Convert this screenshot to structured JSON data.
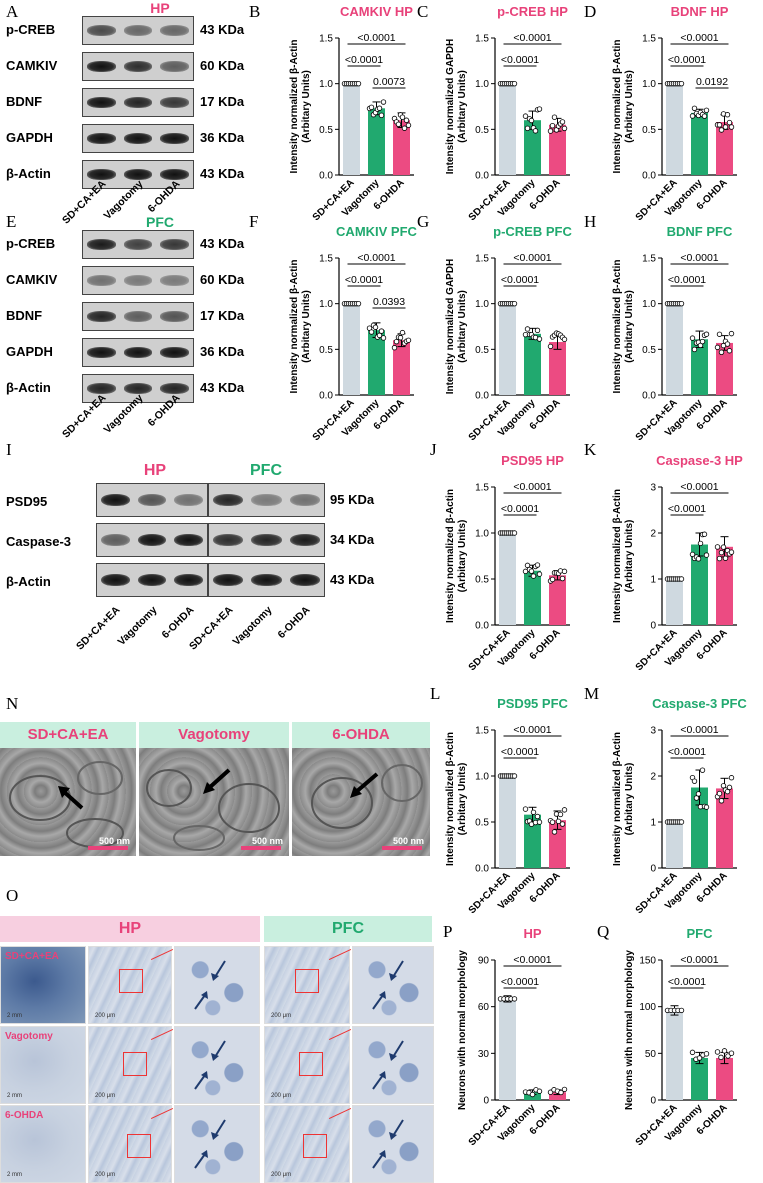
{
  "panel_letters": [
    "A",
    "B",
    "C",
    "D",
    "E",
    "F",
    "G",
    "H",
    "I",
    "J",
    "K",
    "L",
    "M",
    "N",
    "O",
    "P",
    "Q"
  ],
  "groups": [
    "SD+CA+EA",
    "Vagotomy",
    "6-OHDA"
  ],
  "group_colors": [
    "#cfd9e0",
    "#21a96f",
    "#ec4b82"
  ],
  "axis_y_intensity_actin": "Intensity normalized β-Actin",
  "axis_y_intensity_gapdh": "Intensity normalized GAPDH",
  "axis_y_units": "(Arbitary Units)",
  "axis_y_neurons": "Neurons with normal morphology",
  "blotA": {
    "title": "HP",
    "proteins": [
      "p-CREB",
      "CAMKIV",
      "BDNF",
      "GAPDH",
      "β-Actin"
    ],
    "sizes": [
      "43 KDa",
      "60 KDa",
      "17 KDa",
      "36 KDa",
      "43 KDa"
    ]
  },
  "blotE": {
    "title": "PFC",
    "proteins": [
      "p-CREB",
      "CAMKIV",
      "BDNF",
      "GAPDH",
      "β-Actin"
    ],
    "sizes": [
      "43 KDa",
      "60 KDa",
      "17 KDa",
      "36 KDa",
      "43 KDa"
    ]
  },
  "blotI": {
    "title_hp": "HP",
    "title_pfc": "PFC",
    "proteins": [
      "PSD95",
      "Caspase-3",
      "β-Actin"
    ],
    "sizes": [
      "95 KDa",
      "34 KDa",
      "43 KDa"
    ]
  },
  "emN": {
    "headers": [
      "SD+CA+EA",
      "Vagotomy",
      "6-OHDA"
    ],
    "scale": "500 nm"
  },
  "histO": {
    "hp_title": "HP",
    "pfc_title": "PFC",
    "row_labels": [
      "SD+CA+EA",
      "Vagotomy",
      "6-OHDA"
    ],
    "scale_low": "2 mm",
    "scale_mid": "200 μm"
  },
  "chart_data": [
    {
      "panel": "B",
      "type": "bar",
      "title": "CAMKIV HP",
      "ylabel": "Intensity normalized β-Actin (Arbitary Units)",
      "categories": [
        "SD+CA+EA",
        "Vagotomy",
        "6-OHDA"
      ],
      "values": [
        1.0,
        0.73,
        0.6
      ],
      "errors": [
        0.0,
        0.07,
        0.08
      ],
      "ylim": [
        0,
        1.5
      ],
      "yticks": [
        0.0,
        0.5,
        1.0,
        1.5
      ],
      "pvalues": [
        {
          "from": 0,
          "to": 1,
          "p": "<0.0001"
        },
        {
          "from": 0,
          "to": 2,
          "p": "<0.0001"
        },
        {
          "from": 1,
          "to": 2,
          "p": "0.0073"
        }
      ]
    },
    {
      "panel": "C",
      "type": "bar",
      "title": "p-CREB HP",
      "ylabel": "Intensity normalized GAPDH (Arbitary Units)",
      "categories": [
        "SD+CA+EA",
        "Vagotomy",
        "6-OHDA"
      ],
      "values": [
        1.0,
        0.6,
        0.55
      ],
      "errors": [
        0.0,
        0.1,
        0.07
      ],
      "ylim": [
        0,
        1.5
      ],
      "yticks": [
        0.0,
        0.5,
        1.0,
        1.5
      ],
      "pvalues": [
        {
          "from": 0,
          "to": 1,
          "p": "<0.0001"
        },
        {
          "from": 0,
          "to": 2,
          "p": "<0.0001"
        }
      ]
    },
    {
      "panel": "D",
      "type": "bar",
      "title": "BDNF HP",
      "ylabel": "Intensity normalized β-Actin (Arbitary Units)",
      "categories": [
        "SD+CA+EA",
        "Vagotomy",
        "6-OHDA"
      ],
      "values": [
        1.0,
        0.68,
        0.58
      ],
      "errors": [
        0.0,
        0.04,
        0.08
      ],
      "ylim": [
        0,
        1.5
      ],
      "yticks": [
        0.0,
        0.5,
        1.0,
        1.5
      ],
      "pvalues": [
        {
          "from": 0,
          "to": 1,
          "p": "<0.0001"
        },
        {
          "from": 0,
          "to": 2,
          "p": "<0.0001"
        },
        {
          "from": 1,
          "to": 2,
          "p": "0.0192"
        }
      ]
    },
    {
      "panel": "F",
      "type": "bar",
      "title": "CAMKIV PFC",
      "ylabel": "Intensity normalized β-Actin (Arbitary Units)",
      "categories": [
        "SD+CA+EA",
        "Vagotomy",
        "6-OHDA"
      ],
      "values": [
        1.0,
        0.71,
        0.6
      ],
      "errors": [
        0.0,
        0.08,
        0.07
      ],
      "ylim": [
        0,
        1.5
      ],
      "yticks": [
        0.0,
        0.5,
        1.0,
        1.5
      ],
      "pvalues": [
        {
          "from": 0,
          "to": 1,
          "p": "<0.0001"
        },
        {
          "from": 0,
          "to": 2,
          "p": "<0.0001"
        },
        {
          "from": 1,
          "to": 2,
          "p": "0.0393"
        }
      ]
    },
    {
      "panel": "G",
      "type": "bar",
      "title": "p-CREB PFC",
      "ylabel": "Intensity normalized GAPDH (Arbitary Units)",
      "categories": [
        "SD+CA+EA",
        "Vagotomy",
        "6-OHDA"
      ],
      "values": [
        1.0,
        0.67,
        0.58
      ],
      "errors": [
        0.0,
        0.06,
        0.08
      ],
      "ylim": [
        0,
        1.5
      ],
      "yticks": [
        0.0,
        0.5,
        1.0,
        1.5
      ],
      "pvalues": [
        {
          "from": 0,
          "to": 1,
          "p": "<0.0001"
        },
        {
          "from": 0,
          "to": 2,
          "p": "<0.0001"
        }
      ]
    },
    {
      "panel": "H",
      "type": "bar",
      "title": "BDNF PFC",
      "ylabel": "Intensity normalized β-Actin (Arbitary Units)",
      "categories": [
        "SD+CA+EA",
        "Vagotomy",
        "6-OHDA"
      ],
      "values": [
        1.0,
        0.61,
        0.57
      ],
      "errors": [
        0.0,
        0.09,
        0.08
      ],
      "ylim": [
        0,
        1.5
      ],
      "yticks": [
        0.0,
        0.5,
        1.0,
        1.5
      ],
      "pvalues": [
        {
          "from": 0,
          "to": 1,
          "p": "<0.0001"
        },
        {
          "from": 0,
          "to": 2,
          "p": "<0.0001"
        }
      ]
    },
    {
      "panel": "J",
      "type": "bar",
      "title": "PSD95 HP",
      "ylabel": "Intensity normalized β-Actin (Arbitary Units)",
      "categories": [
        "SD+CA+EA",
        "Vagotomy",
        "6-OHDA"
      ],
      "values": [
        1.0,
        0.59,
        0.54
      ],
      "errors": [
        0.0,
        0.06,
        0.05
      ],
      "ylim": [
        0,
        1.5
      ],
      "yticks": [
        0.0,
        0.5,
        1.0,
        1.5
      ],
      "pvalues": [
        {
          "from": 0,
          "to": 1,
          "p": "<0.0001"
        },
        {
          "from": 0,
          "to": 2,
          "p": "<0.0001"
        }
      ]
    },
    {
      "panel": "K",
      "type": "bar",
      "title": "Caspase-3 HP",
      "ylabel": "Intensity normalized β-Actin (Arbitary Units)",
      "categories": [
        "SD+CA+EA",
        "Vagotomy",
        "6-OHDA"
      ],
      "values": [
        1.0,
        1.75,
        1.7
      ],
      "errors": [
        0.0,
        0.25,
        0.22
      ],
      "ylim": [
        0,
        3
      ],
      "yticks": [
        0,
        1,
        2,
        3
      ],
      "pvalues": [
        {
          "from": 0,
          "to": 1,
          "p": "<0.0001"
        },
        {
          "from": 0,
          "to": 2,
          "p": "<0.0001"
        }
      ]
    },
    {
      "panel": "L",
      "type": "bar",
      "title": "PSD95 PFC",
      "ylabel": "Intensity normalized β-Actin (Arbitary Units)",
      "categories": [
        "SD+CA+EA",
        "Vagotomy",
        "6-OHDA"
      ],
      "values": [
        1.0,
        0.58,
        0.52
      ],
      "errors": [
        0.0,
        0.08,
        0.1
      ],
      "ylim": [
        0,
        1.5
      ],
      "yticks": [
        0.0,
        0.5,
        1.0,
        1.5
      ],
      "pvalues": [
        {
          "from": 0,
          "to": 1,
          "p": "<0.0001"
        },
        {
          "from": 0,
          "to": 2,
          "p": "<0.0001"
        }
      ]
    },
    {
      "panel": "M",
      "type": "bar",
      "title": "Caspase-3 PFC",
      "ylabel": "Intensity normalized β-Actin (Arbitary Units)",
      "categories": [
        "SD+CA+EA",
        "Vagotomy",
        "6-OHDA"
      ],
      "values": [
        1.0,
        1.75,
        1.73
      ],
      "errors": [
        0.0,
        0.38,
        0.22
      ],
      "ylim": [
        0,
        3
      ],
      "yticks": [
        0,
        1,
        2,
        3
      ],
      "pvalues": [
        {
          "from": 0,
          "to": 1,
          "p": "<0.0001"
        },
        {
          "from": 0,
          "to": 2,
          "p": "<0.0001"
        }
      ]
    },
    {
      "panel": "P",
      "type": "bar",
      "title": "HP",
      "ylabel": "Neurons with normal morphology",
      "categories": [
        "SD+CA+EA",
        "Vagotomy",
        "6-OHDA"
      ],
      "values": [
        65,
        5,
        5
      ],
      "errors": [
        2,
        1.5,
        1.5
      ],
      "ylim": [
        0,
        90
      ],
      "yticks": [
        0,
        30,
        60,
        90
      ],
      "pvalues": [
        {
          "from": 0,
          "to": 1,
          "p": "<0.0001"
        },
        {
          "from": 0,
          "to": 2,
          "p": "<0.0001"
        }
      ]
    },
    {
      "panel": "Q",
      "type": "bar",
      "title": "PFC",
      "ylabel": "Neurons with normal morphology",
      "categories": [
        "SD+CA+EA",
        "Vagotomy",
        "6-OHDA"
      ],
      "values": [
        96,
        45,
        45
      ],
      "errors": [
        5,
        6,
        6
      ],
      "ylim": [
        0,
        150
      ],
      "yticks": [
        0,
        50,
        100,
        150
      ],
      "pvalues": [
        {
          "from": 0,
          "to": 1,
          "p": "<0.0001"
        },
        {
          "from": 0,
          "to": 2,
          "p": "<0.0001"
        }
      ]
    }
  ]
}
